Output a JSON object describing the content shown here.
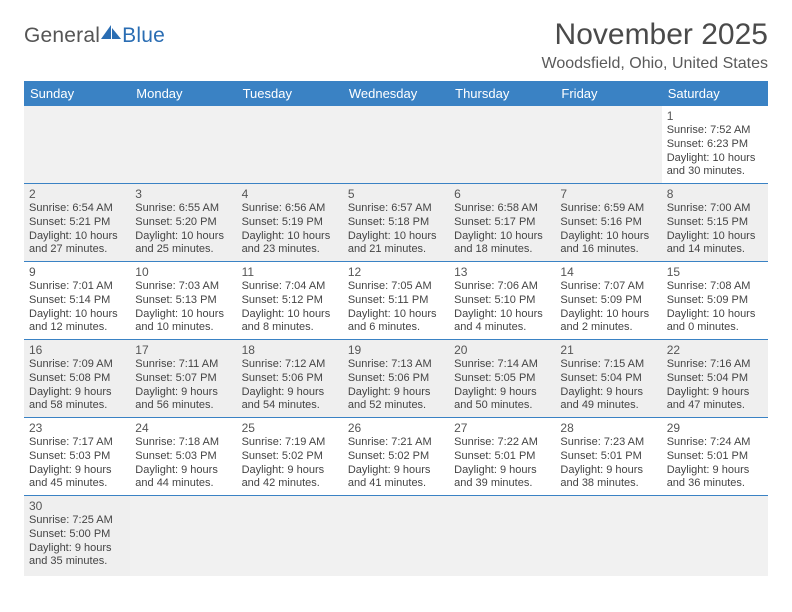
{
  "logo": {
    "part1": "General",
    "part2": "Blue"
  },
  "title": "November 2025",
  "location": "Woodsfield, Ohio, United States",
  "header_bg": "#3a82c4",
  "daynames": [
    "Sunday",
    "Monday",
    "Tuesday",
    "Wednesday",
    "Thursday",
    "Friday",
    "Saturday"
  ],
  "weeks": [
    [
      {
        "empty": true
      },
      {
        "empty": true
      },
      {
        "empty": true
      },
      {
        "empty": true
      },
      {
        "empty": true
      },
      {
        "empty": true
      },
      {
        "n": "1",
        "sr": "Sunrise: 7:52 AM",
        "ss": "Sunset: 6:23 PM",
        "dl": "Daylight: 10 hours and 30 minutes."
      }
    ],
    [
      {
        "n": "2",
        "sr": "Sunrise: 6:54 AM",
        "ss": "Sunset: 5:21 PM",
        "dl": "Daylight: 10 hours and 27 minutes.",
        "bg": true
      },
      {
        "n": "3",
        "sr": "Sunrise: 6:55 AM",
        "ss": "Sunset: 5:20 PM",
        "dl": "Daylight: 10 hours and 25 minutes.",
        "bg": true
      },
      {
        "n": "4",
        "sr": "Sunrise: 6:56 AM",
        "ss": "Sunset: 5:19 PM",
        "dl": "Daylight: 10 hours and 23 minutes.",
        "bg": true
      },
      {
        "n": "5",
        "sr": "Sunrise: 6:57 AM",
        "ss": "Sunset: 5:18 PM",
        "dl": "Daylight: 10 hours and 21 minutes.",
        "bg": true
      },
      {
        "n": "6",
        "sr": "Sunrise: 6:58 AM",
        "ss": "Sunset: 5:17 PM",
        "dl": "Daylight: 10 hours and 18 minutes.",
        "bg": true
      },
      {
        "n": "7",
        "sr": "Sunrise: 6:59 AM",
        "ss": "Sunset: 5:16 PM",
        "dl": "Daylight: 10 hours and 16 minutes.",
        "bg": true
      },
      {
        "n": "8",
        "sr": "Sunrise: 7:00 AM",
        "ss": "Sunset: 5:15 PM",
        "dl": "Daylight: 10 hours and 14 minutes.",
        "bg": true
      }
    ],
    [
      {
        "n": "9",
        "sr": "Sunrise: 7:01 AM",
        "ss": "Sunset: 5:14 PM",
        "dl": "Daylight: 10 hours and 12 minutes."
      },
      {
        "n": "10",
        "sr": "Sunrise: 7:03 AM",
        "ss": "Sunset: 5:13 PM",
        "dl": "Daylight: 10 hours and 10 minutes."
      },
      {
        "n": "11",
        "sr": "Sunrise: 7:04 AM",
        "ss": "Sunset: 5:12 PM",
        "dl": "Daylight: 10 hours and 8 minutes."
      },
      {
        "n": "12",
        "sr": "Sunrise: 7:05 AM",
        "ss": "Sunset: 5:11 PM",
        "dl": "Daylight: 10 hours and 6 minutes."
      },
      {
        "n": "13",
        "sr": "Sunrise: 7:06 AM",
        "ss": "Sunset: 5:10 PM",
        "dl": "Daylight: 10 hours and 4 minutes."
      },
      {
        "n": "14",
        "sr": "Sunrise: 7:07 AM",
        "ss": "Sunset: 5:09 PM",
        "dl": "Daylight: 10 hours and 2 minutes."
      },
      {
        "n": "15",
        "sr": "Sunrise: 7:08 AM",
        "ss": "Sunset: 5:09 PM",
        "dl": "Daylight: 10 hours and 0 minutes."
      }
    ],
    [
      {
        "n": "16",
        "sr": "Sunrise: 7:09 AM",
        "ss": "Sunset: 5:08 PM",
        "dl": "Daylight: 9 hours and 58 minutes.",
        "bg": true
      },
      {
        "n": "17",
        "sr": "Sunrise: 7:11 AM",
        "ss": "Sunset: 5:07 PM",
        "dl": "Daylight: 9 hours and 56 minutes.",
        "bg": true
      },
      {
        "n": "18",
        "sr": "Sunrise: 7:12 AM",
        "ss": "Sunset: 5:06 PM",
        "dl": "Daylight: 9 hours and 54 minutes.",
        "bg": true
      },
      {
        "n": "19",
        "sr": "Sunrise: 7:13 AM",
        "ss": "Sunset: 5:06 PM",
        "dl": "Daylight: 9 hours and 52 minutes.",
        "bg": true
      },
      {
        "n": "20",
        "sr": "Sunrise: 7:14 AM",
        "ss": "Sunset: 5:05 PM",
        "dl": "Daylight: 9 hours and 50 minutes.",
        "bg": true
      },
      {
        "n": "21",
        "sr": "Sunrise: 7:15 AM",
        "ss": "Sunset: 5:04 PM",
        "dl": "Daylight: 9 hours and 49 minutes.",
        "bg": true
      },
      {
        "n": "22",
        "sr": "Sunrise: 7:16 AM",
        "ss": "Sunset: 5:04 PM",
        "dl": "Daylight: 9 hours and 47 minutes.",
        "bg": true
      }
    ],
    [
      {
        "n": "23",
        "sr": "Sunrise: 7:17 AM",
        "ss": "Sunset: 5:03 PM",
        "dl": "Daylight: 9 hours and 45 minutes."
      },
      {
        "n": "24",
        "sr": "Sunrise: 7:18 AM",
        "ss": "Sunset: 5:03 PM",
        "dl": "Daylight: 9 hours and 44 minutes."
      },
      {
        "n": "25",
        "sr": "Sunrise: 7:19 AM",
        "ss": "Sunset: 5:02 PM",
        "dl": "Daylight: 9 hours and 42 minutes."
      },
      {
        "n": "26",
        "sr": "Sunrise: 7:21 AM",
        "ss": "Sunset: 5:02 PM",
        "dl": "Daylight: 9 hours and 41 minutes."
      },
      {
        "n": "27",
        "sr": "Sunrise: 7:22 AM",
        "ss": "Sunset: 5:01 PM",
        "dl": "Daylight: 9 hours and 39 minutes."
      },
      {
        "n": "28",
        "sr": "Sunrise: 7:23 AM",
        "ss": "Sunset: 5:01 PM",
        "dl": "Daylight: 9 hours and 38 minutes."
      },
      {
        "n": "29",
        "sr": "Sunrise: 7:24 AM",
        "ss": "Sunset: 5:01 PM",
        "dl": "Daylight: 9 hours and 36 minutes."
      }
    ],
    [
      {
        "n": "30",
        "sr": "Sunrise: 7:25 AM",
        "ss": "Sunset: 5:00 PM",
        "dl": "Daylight: 9 hours and 35 minutes.",
        "bg": true
      },
      {
        "empty": true
      },
      {
        "empty": true
      },
      {
        "empty": true
      },
      {
        "empty": true
      },
      {
        "empty": true
      },
      {
        "empty": true
      }
    ]
  ]
}
